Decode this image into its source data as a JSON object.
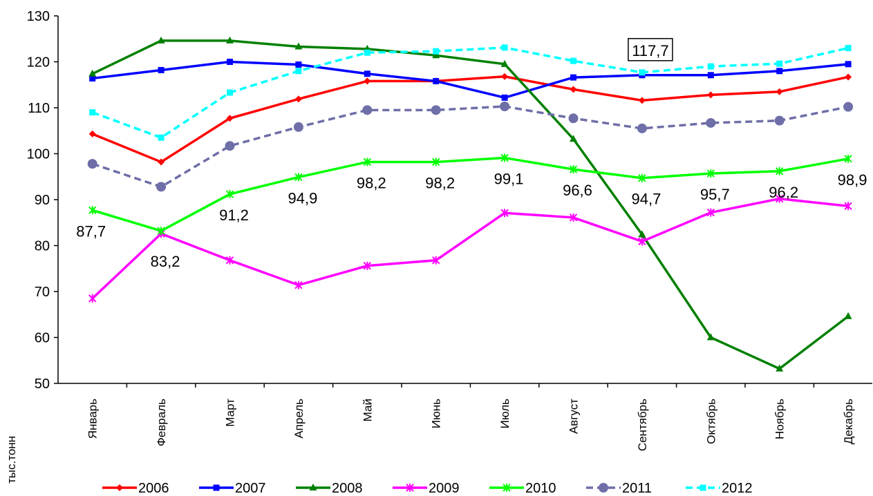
{
  "chart_data": {
    "type": "line",
    "y_label": "тыс.тонн",
    "categories": [
      "Январь",
      "Февраль",
      "Март",
      "Апрель",
      "Май",
      "Июнь",
      "Июль",
      "Август",
      "Сентябрь",
      "Октябрь",
      "Ноябрь",
      "Декабрь"
    ],
    "ylim": [
      50,
      130
    ],
    "yticks": [
      50,
      60,
      70,
      80,
      90,
      100,
      110,
      120,
      130
    ],
    "grid": false,
    "legend": "bottom",
    "series": [
      {
        "name": "2006",
        "color": "#ff0000",
        "marker": "diamond",
        "values": [
          104.3,
          98.2,
          107.7,
          111.9,
          115.8,
          115.8,
          116.8,
          114,
          111.6,
          112.8,
          113.5,
          116.7
        ]
      },
      {
        "name": "2007",
        "color": "#0000ff",
        "marker": "square",
        "values": [
          116.4,
          118.2,
          120,
          119.4,
          117.4,
          115.8,
          112.2,
          116.6,
          117.1,
          117.1,
          118,
          119.5
        ]
      },
      {
        "name": "2008",
        "color": "#008000",
        "marker": "triangle",
        "values": [
          117.4,
          124.6,
          124.6,
          123.3,
          122.8,
          121.4,
          119.5,
          103.2,
          82.4,
          60,
          53.2,
          64.6
        ]
      },
      {
        "name": "2009",
        "color": "#ff00ff",
        "marker": "star",
        "values": [
          68.5,
          82.6,
          76.8,
          71.4,
          75.6,
          76.8,
          87.1,
          86.1,
          80.9,
          87.2,
          90.2,
          88.6
        ]
      },
      {
        "name": "2010",
        "color": "#00ff00",
        "marker": "star",
        "values": [
          87.7,
          83.2,
          91.2,
          94.9,
          98.2,
          98.2,
          99.1,
          96.6,
          94.7,
          95.7,
          96.2,
          98.9
        ],
        "value_labels": [
          "87,7",
          "83,2",
          "91,2",
          "94,9",
          "98,2",
          "98,2",
          "99,1",
          "96,6",
          "94,7",
          "95,7",
          "96,2",
          "98,9"
        ]
      },
      {
        "name": "2011",
        "color": "#6e6ea8",
        "marker": "circle",
        "dash": true,
        "values": [
          97.8,
          92.8,
          101.7,
          105.8,
          109.5,
          109.5,
          110.3,
          107.7,
          105.5,
          106.7,
          107.2,
          110.2
        ]
      },
      {
        "name": "2012",
        "color": "#00ffff",
        "marker": "square",
        "dash": true,
        "values": [
          109,
          103.5,
          113.3,
          118,
          122,
          122.3,
          123.1,
          120.2,
          117.7,
          119,
          119.6,
          123
        ],
        "value_labels": [
          null,
          null,
          null,
          null,
          null,
          null,
          null,
          null,
          "117,7",
          null,
          null,
          null
        ]
      }
    ]
  }
}
